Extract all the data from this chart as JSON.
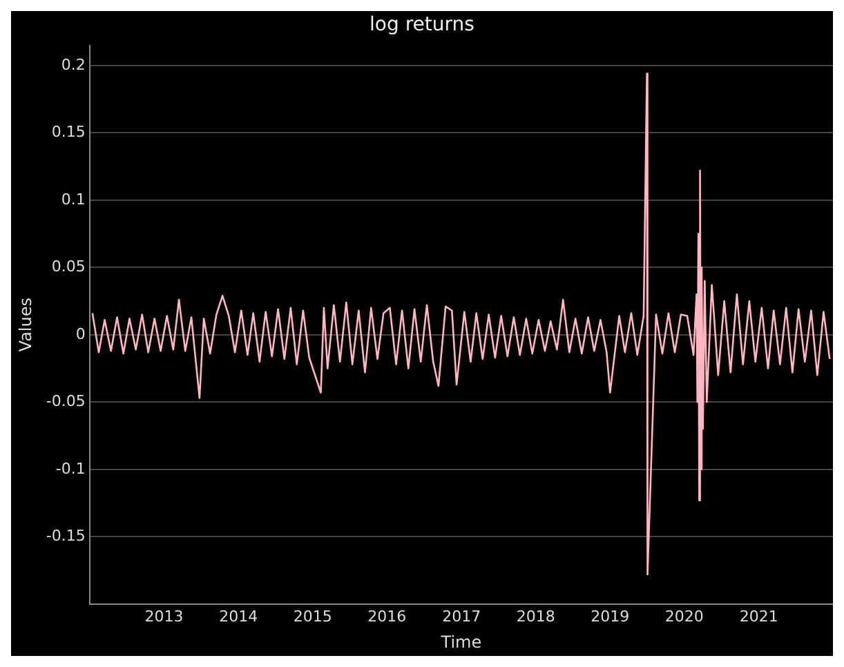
{
  "chart_data": {
    "type": "line",
    "title": "log returns",
    "xlabel": "Time",
    "ylabel": "Values",
    "xlim": [
      "2012-01-01",
      "2021-12-31"
    ],
    "xticks": [
      "2013",
      "2014",
      "2015",
      "2016",
      "2017",
      "2018",
      "2019",
      "2020",
      "2021"
    ],
    "ylim": [
      -0.2,
      0.215
    ],
    "yticks": [
      -0.15,
      -0.1,
      -0.05,
      0,
      0.05,
      0.1,
      0.15,
      0.2
    ],
    "grid": "y",
    "marker": "none",
    "line_style": "solid",
    "x": [
      "2012-01-15",
      "2012-02-15",
      "2012-03-15",
      "2012-04-15",
      "2012-05-15",
      "2012-06-15",
      "2012-07-15",
      "2012-08-15",
      "2012-09-15",
      "2012-10-15",
      "2012-11-15",
      "2012-12-15",
      "2013-01-15",
      "2013-02-15",
      "2013-03-15",
      "2013-04-15",
      "2013-05-15",
      "2013-06-24",
      "2013-07-15",
      "2013-08-15",
      "2013-09-15",
      "2013-10-15",
      "2013-11-15",
      "2013-12-15",
      "2014-01-15",
      "2014-02-15",
      "2014-03-15",
      "2014-04-15",
      "2014-05-15",
      "2014-06-15",
      "2014-07-15",
      "2014-08-15",
      "2014-09-15",
      "2014-10-15",
      "2014-11-15",
      "2014-12-15",
      "2015-02-10",
      "2015-02-25",
      "2015-03-15",
      "2015-04-15",
      "2015-05-15",
      "2015-06-15",
      "2015-07-15",
      "2015-08-15",
      "2015-09-15",
      "2015-10-15",
      "2015-11-15",
      "2015-12-15",
      "2016-01-15",
      "2016-02-15",
      "2016-03-15",
      "2016-04-15",
      "2016-05-15",
      "2016-06-15",
      "2016-07-15",
      "2016-08-15",
      "2016-09-10",
      "2016-10-15",
      "2016-11-15",
      "2016-12-08",
      "2017-01-15",
      "2017-02-15",
      "2017-03-15",
      "2017-04-15",
      "2017-05-15",
      "2017-06-15",
      "2017-07-15",
      "2017-08-15",
      "2017-09-15",
      "2017-10-15",
      "2017-11-15",
      "2017-12-15",
      "2018-01-15",
      "2018-02-15",
      "2018-03-15",
      "2018-04-15",
      "2018-05-15",
      "2018-06-15",
      "2018-07-15",
      "2018-08-15",
      "2018-09-15",
      "2018-10-15",
      "2018-11-15",
      "2018-12-15",
      "2019-01-01",
      "2019-02-15",
      "2019-03-15",
      "2019-04-15",
      "2019-05-15",
      "2019-06-15",
      "2019-07-01",
      "2019-07-04",
      "2019-08-15",
      "2019-09-15",
      "2019-10-15",
      "2019-11-15",
      "2019-12-15",
      "2020-01-15",
      "2020-02-15",
      "2020-03-01",
      "2020-03-05",
      "2020-03-10",
      "2020-03-14",
      "2020-03-18",
      "2020-03-22",
      "2020-03-26",
      "2020-04-01",
      "2020-04-10",
      "2020-04-20",
      "2020-05-15",
      "2020-06-15",
      "2020-07-15",
      "2020-08-15",
      "2020-09-15",
      "2020-10-15",
      "2020-11-15",
      "2020-12-15",
      "2021-01-15",
      "2021-02-15",
      "2021-03-15",
      "2021-04-15",
      "2021-05-15",
      "2021-06-15",
      "2021-07-15",
      "2021-08-15",
      "2021-09-15",
      "2021-10-15",
      "2021-11-15",
      "2021-12-15"
    ],
    "series": [
      {
        "color": "#ffb6c1",
        "values": [
          0.016,
          -0.013,
          0.011,
          -0.012,
          0.013,
          -0.014,
          0.012,
          -0.011,
          0.015,
          -0.013,
          0.012,
          -0.012,
          0.014,
          -0.011,
          0.026,
          -0.012,
          0.013,
          -0.047,
          0.012,
          -0.014,
          0.015,
          0.029,
          0.014,
          -0.013,
          0.018,
          -0.015,
          0.016,
          -0.02,
          0.017,
          -0.016,
          0.019,
          -0.018,
          0.02,
          -0.022,
          0.018,
          -0.017,
          -0.043,
          0.02,
          -0.025,
          0.022,
          -0.02,
          0.024,
          -0.022,
          0.018,
          -0.028,
          0.02,
          -0.018,
          0.016,
          0.02,
          -0.022,
          0.018,
          -0.025,
          0.019,
          -0.02,
          0.022,
          -0.02,
          -0.038,
          0.021,
          0.018,
          -0.037,
          0.017,
          -0.02,
          0.016,
          -0.018,
          0.015,
          -0.017,
          0.014,
          -0.016,
          0.013,
          -0.015,
          0.012,
          -0.014,
          0.011,
          -0.012,
          0.01,
          -0.011,
          0.026,
          -0.013,
          0.012,
          -0.014,
          0.013,
          -0.012,
          0.011,
          -0.013,
          -0.043,
          0.014,
          -0.013,
          0.016,
          -0.015,
          0.014,
          0.194,
          -0.178,
          0.015,
          -0.014,
          0.016,
          -0.013,
          0.015,
          0.014,
          -0.015,
          0.03,
          -0.05,
          0.075,
          -0.123,
          0.122,
          -0.1,
          0.05,
          -0.07,
          0.04,
          -0.05,
          0.037,
          -0.03,
          0.025,
          -0.028,
          0.03,
          -0.022,
          0.025,
          -0.02,
          0.02,
          -0.025,
          0.018,
          -0.022,
          0.02,
          -0.028,
          0.019,
          -0.02,
          0.018,
          -0.03,
          0.017,
          -0.018
        ]
      }
    ]
  }
}
